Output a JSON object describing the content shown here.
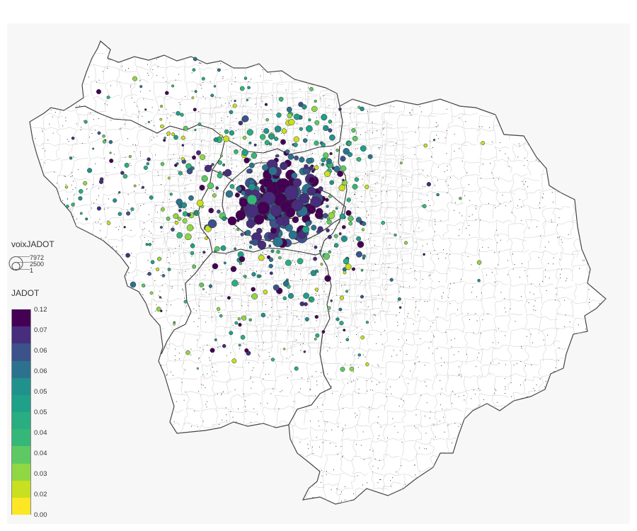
{
  "legend": {
    "size_title": "voixJADOT",
    "size_values": [
      "7972",
      "2500",
      "1"
    ],
    "color_title": "JADOT",
    "color_labels": [
      "0.12",
      "0.07",
      "0.06",
      "0.06",
      "0.05",
      "0.05",
      "0.04",
      "0.04",
      "0.03",
      "0.02",
      "0.00"
    ],
    "color_steps": [
      "#440154",
      "#472d7b",
      "#3b528b",
      "#2c728e",
      "#21918c",
      "#1fa088",
      "#28ae80",
      "#35b779",
      "#5ec962",
      "#90d743",
      "#c8e020",
      "#fde725"
    ]
  },
  "map": {
    "region": "Île-de-France",
    "background": "#f7f7f7",
    "commune_fill": "#ffffff",
    "commune_stroke": "#cfcfcf",
    "dept_stroke": "#333333"
  }
}
